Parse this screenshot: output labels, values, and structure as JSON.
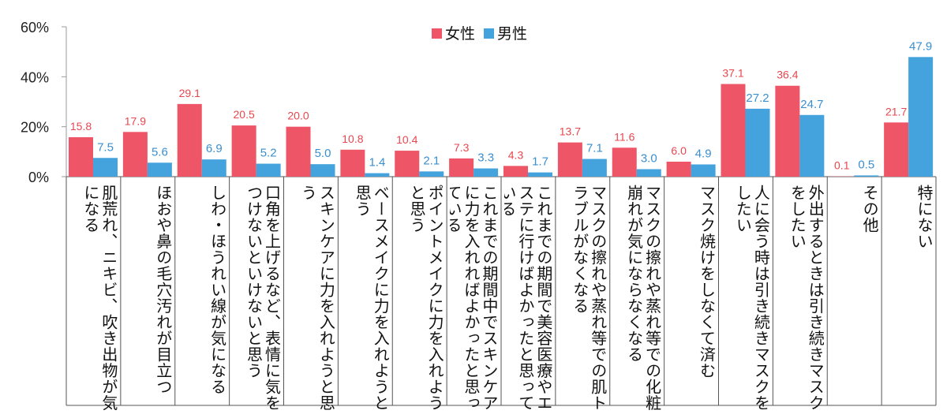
{
  "chart_data": {
    "type": "bar",
    "title": "",
    "xlabel": "",
    "ylabel": "",
    "ylim": [
      0,
      60
    ],
    "y_ticks": [
      "0%",
      "20%",
      "40%",
      "60%"
    ],
    "y_tick_values": [
      0,
      20,
      40,
      60
    ],
    "legend_position": "top-center",
    "categories": [
      "肌荒れ、ニキビ、吹き出物が気になる",
      "ほおや鼻の毛穴汚れが目立つ",
      "しわ・ほうれい線が気になる",
      "口角を上げるなど、表情に気をつけないといけないと思う",
      "スキンケアに力を入れようと思う",
      "ベースメイクに力を入れようと思う",
      "ポイントメイクに力を入れようと思う",
      "これまでの期間中でスキンケアに力を入れればよかったと思っている",
      "これまでの期間で美容医療やエステに行けばよかったと思っている",
      "マスクの擦れや蒸れ等での肌トラブルがなくなる",
      "マスクの擦れや蒸れ等での化粧崩れが気にならなくなる",
      "マスク焼けをしなくて済む",
      "人に会う時は引き続きマスクをしたい",
      "外出するときは引き続きマスクをしたい",
      "その他",
      "特にない"
    ],
    "series": [
      {
        "name": "女性",
        "color": "#ee5566",
        "label_color": "#e8474f",
        "values": [
          15.8,
          17.9,
          29.1,
          20.5,
          20.0,
          10.8,
          10.4,
          7.3,
          4.3,
          13.7,
          11.6,
          6.0,
          37.1,
          36.4,
          0.1,
          21.7
        ],
        "labels": [
          "15.8",
          "17.9",
          "29.1",
          "20.5",
          "20.0",
          "10.8",
          "10.4",
          "7.3",
          "4.3",
          "13.7",
          "11.6",
          "6.0",
          "37.1",
          "36.4",
          "0.1",
          "21.7"
        ]
      },
      {
        "name": "男性",
        "color": "#44a3dd",
        "label_color": "#3a8fcf",
        "values": [
          7.5,
          5.6,
          6.9,
          5.2,
          5.0,
          1.4,
          2.1,
          3.3,
          1.7,
          7.1,
          3.0,
          4.9,
          27.2,
          24.7,
          0.5,
          47.9
        ],
        "labels": [
          "7.5",
          "5.6",
          "6.9",
          "5.2",
          "5.0",
          "1.4",
          "2.1",
          "3.3",
          "1.7",
          "7.1",
          "3.0",
          "4.9",
          "27.2",
          "24.7",
          "0.5",
          "47.9"
        ]
      }
    ]
  }
}
